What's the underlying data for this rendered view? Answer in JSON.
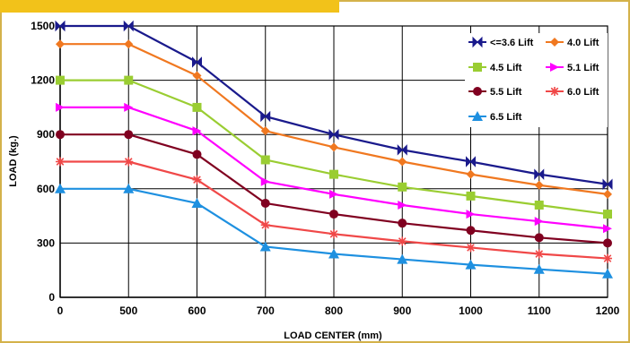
{
  "chart_data": {
    "type": "line",
    "title": "",
    "xlabel": "LOAD CENTER (mm)",
    "ylabel": "LOAD (kg.)",
    "x": [
      0,
      500,
      600,
      700,
      800,
      900,
      1000,
      1100,
      1200
    ],
    "x_tick_labels": [
      "0",
      "500",
      "600",
      "700",
      "800",
      "900",
      "1000",
      "1100",
      "1200"
    ],
    "y_ticks": [
      0,
      300,
      600,
      900,
      1200,
      1500
    ],
    "y_tick_labels": [
      "0",
      "300",
      "600",
      "900",
      "1200",
      "1500"
    ],
    "ylim": [
      0,
      1500
    ],
    "grid": true,
    "legend_position": "top-right",
    "series": [
      {
        "name": "<=3.6 Lift",
        "color": "#1a1a8c",
        "marker": "bowtie",
        "values": [
          1500,
          1500,
          1300,
          1000,
          900,
          815,
          750,
          680,
          625
        ]
      },
      {
        "name": "4.0 Lift",
        "color": "#f07820",
        "marker": "diamond",
        "values": [
          1400,
          1400,
          1225,
          920,
          830,
          750,
          680,
          620,
          570
        ]
      },
      {
        "name": "4.5 Lift",
        "color": "#9acd32",
        "marker": "square",
        "values": [
          1200,
          1200,
          1050,
          760,
          680,
          610,
          560,
          510,
          460
        ]
      },
      {
        "name": "5.1 Lift",
        "color": "#ff00ff",
        "marker": "triangle-right",
        "values": [
          1050,
          1050,
          920,
          640,
          570,
          510,
          460,
          420,
          380
        ]
      },
      {
        "name": "5.5 Lift",
        "color": "#800020",
        "marker": "circle",
        "values": [
          900,
          900,
          790,
          520,
          460,
          410,
          370,
          330,
          300
        ]
      },
      {
        "name": "6.0 Lift",
        "color": "#f04848",
        "marker": "star",
        "values": [
          750,
          750,
          650,
          400,
          350,
          310,
          275,
          240,
          215
        ]
      },
      {
        "name": "6.5 Lift",
        "color": "#1e90e0",
        "marker": "triangle-up",
        "values": [
          600,
          600,
          520,
          280,
          240,
          210,
          180,
          155,
          130
        ]
      }
    ]
  }
}
